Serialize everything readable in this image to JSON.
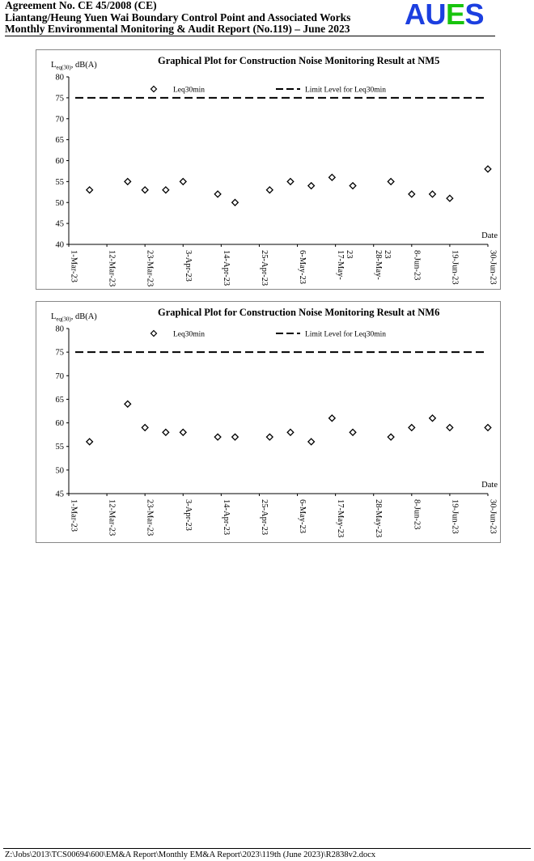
{
  "header": {
    "line1": "Agreement No. CE 45/2008 (CE)",
    "line2": "Liantang/Heung Yuen Wai Boundary Control Point and Associated Works",
    "line3": "Monthly Environmental Monitoring & Audit Report (No.119) – June 2023",
    "logo": {
      "letters": [
        "A",
        "U",
        "E",
        "S"
      ],
      "colors": [
        "#1c3fe0",
        "#1c3fe0",
        "#18c40e",
        "#1c3fe0"
      ]
    }
  },
  "footer": {
    "path": "Z:\\Jobs\\2013\\TCS00694\\600\\EM&A Report\\Monthly EM&A Report\\2023\\119th (June 2023)\\R2838v2.docx"
  },
  "chart_data": [
    {
      "type": "scatter",
      "title": "Graphical Plot for Construction Noise Monitoring Result at NM5",
      "ylabel": "Leq30, dB(A)",
      "xlabel": "Date",
      "ylim": [
        40,
        80
      ],
      "yticks": [
        40,
        45,
        50,
        55,
        60,
        65,
        70,
        75,
        80
      ],
      "xlim": [
        "2023-03-01",
        "2023-06-30"
      ],
      "xtick_labels": [
        {
          "date": "2023-03-01",
          "label": "1-Mar-23"
        },
        {
          "date": "2023-03-12",
          "label": "12-Mar-23"
        },
        {
          "date": "2023-03-23",
          "label": "23-Mar-23"
        },
        {
          "date": "2023-04-03",
          "label": "3-Apr-23"
        },
        {
          "date": "2023-04-14",
          "label": "14-Apr-23"
        },
        {
          "date": "2023-04-25",
          "label": "25-Apr-23"
        },
        {
          "date": "2023-05-06",
          "label": "6-May-23"
        },
        {
          "date": "2023-05-17",
          "label": "17-May-\n23"
        },
        {
          "date": "2023-05-28",
          "label": "28-May-\n23"
        },
        {
          "date": "2023-06-08",
          "label": "8-Jun-23"
        },
        {
          "date": "2023-06-19",
          "label": "19-Jun-23"
        },
        {
          "date": "2023-06-30",
          "label": "30-Jun-23"
        }
      ],
      "legend": [
        "Leq30min",
        "Limit Level for Leq30min"
      ],
      "grid": false,
      "series": [
        {
          "name": "Leq30min",
          "marker": "diamond",
          "x": [
            "2023-03-07",
            "2023-03-18",
            "2023-03-23",
            "2023-03-29",
            "2023-04-03",
            "2023-04-13",
            "2023-04-18",
            "2023-04-28",
            "2023-05-04",
            "2023-05-10",
            "2023-05-16",
            "2023-05-22",
            "2023-06-02",
            "2023-06-08",
            "2023-06-14",
            "2023-06-19",
            "2023-06-30"
          ],
          "y": [
            53,
            55,
            53,
            53,
            55,
            52,
            50,
            53,
            55,
            54,
            56,
            54,
            55,
            52,
            52,
            51,
            58
          ]
        },
        {
          "name": "Limit Level for Leq30min",
          "style": "dashed",
          "x": [
            "2023-03-01",
            "2023-06-30"
          ],
          "y": [
            75,
            75
          ]
        }
      ]
    },
    {
      "type": "scatter",
      "title": "Graphical Plot for Construction Noise Monitoring Result at NM6",
      "ylabel": "Leq30, dB(A)",
      "xlabel": "Date",
      "ylim": [
        45,
        80
      ],
      "yticks": [
        45,
        50,
        55,
        60,
        65,
        70,
        75,
        80
      ],
      "xlim": [
        "2023-03-01",
        "2023-06-30"
      ],
      "xtick_labels": [
        {
          "date": "2023-03-01",
          "label": "1-Mar-23"
        },
        {
          "date": "2023-03-12",
          "label": "12-Mar-23"
        },
        {
          "date": "2023-03-23",
          "label": "23-Mar-23"
        },
        {
          "date": "2023-04-03",
          "label": "3-Apr-23"
        },
        {
          "date": "2023-04-14",
          "label": "14-Apr-23"
        },
        {
          "date": "2023-04-25",
          "label": "25-Apr-23"
        },
        {
          "date": "2023-05-06",
          "label": "6-May-23"
        },
        {
          "date": "2023-05-17",
          "label": "17-May-23"
        },
        {
          "date": "2023-05-28",
          "label": "28-May-23"
        },
        {
          "date": "2023-06-08",
          "label": "8-Jun-23"
        },
        {
          "date": "2023-06-19",
          "label": "19-Jun-23"
        },
        {
          "date": "2023-06-30",
          "label": "30-Jun-23"
        }
      ],
      "legend": [
        "Leq30min",
        "Limit Level for Leq30min"
      ],
      "grid": false,
      "series": [
        {
          "name": "Leq30min",
          "marker": "diamond",
          "x": [
            "2023-03-07",
            "2023-03-18",
            "2023-03-23",
            "2023-03-29",
            "2023-04-03",
            "2023-04-13",
            "2023-04-18",
            "2023-04-28",
            "2023-05-04",
            "2023-05-10",
            "2023-05-16",
            "2023-05-22",
            "2023-06-02",
            "2023-06-08",
            "2023-06-14",
            "2023-06-19",
            "2023-06-30"
          ],
          "y": [
            56,
            64,
            59,
            58,
            58,
            57,
            57,
            57,
            58,
            56,
            61,
            58,
            57,
            59,
            61,
            59,
            59
          ]
        },
        {
          "name": "Limit Level for Leq30min",
          "style": "dashed",
          "x": [
            "2023-03-01",
            "2023-06-30"
          ],
          "y": [
            75,
            75
          ]
        }
      ]
    }
  ]
}
